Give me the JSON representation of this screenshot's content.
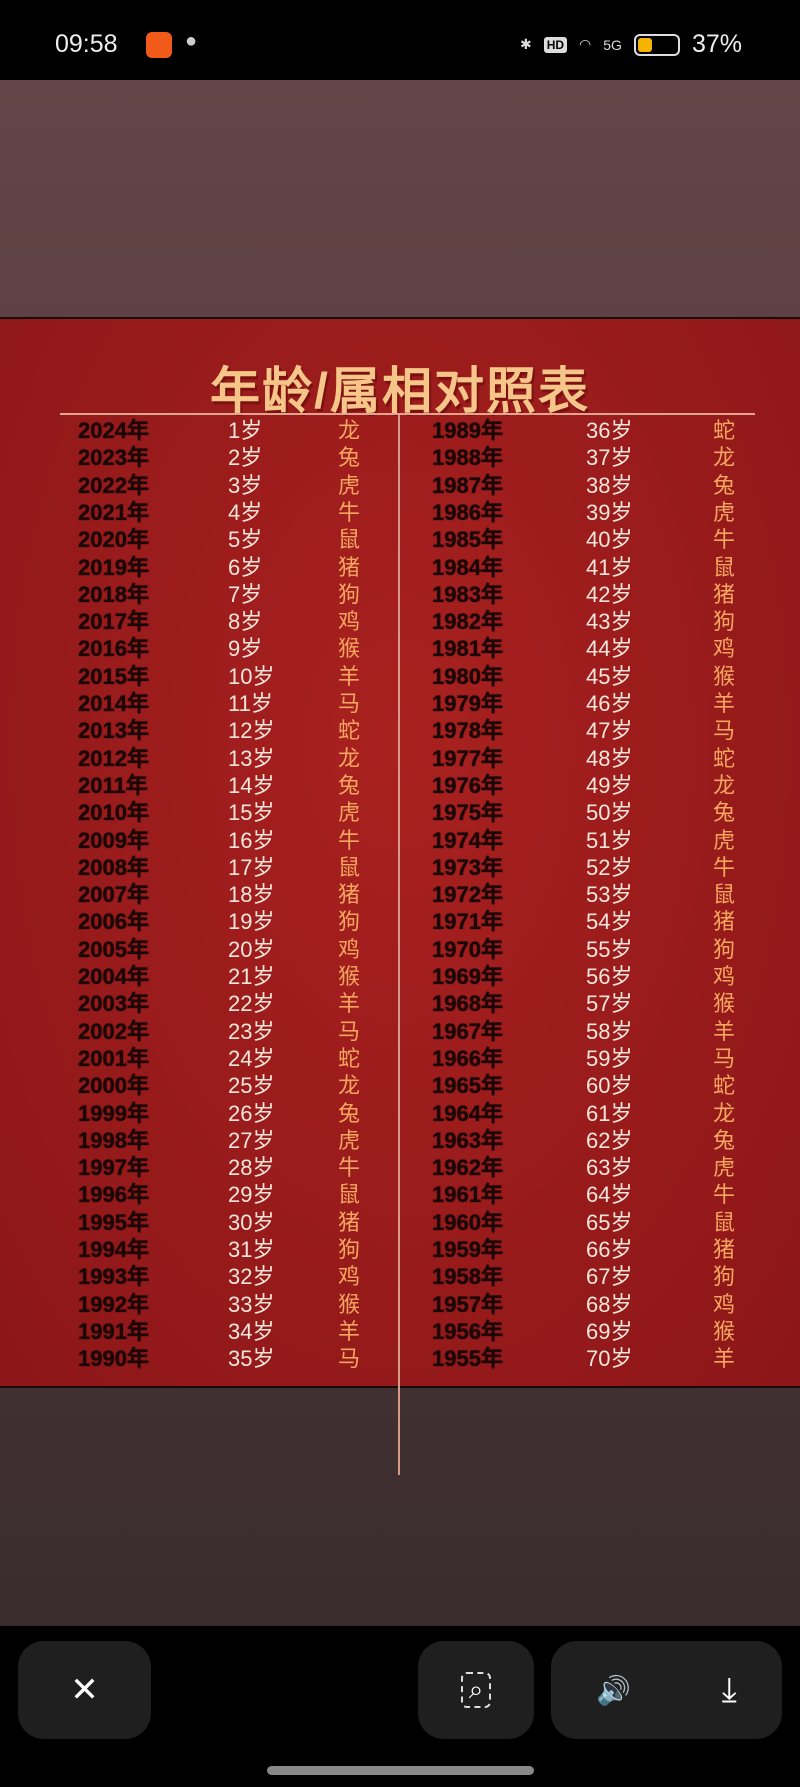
{
  "status_bar": {
    "time": "09:58",
    "icons": [
      "app-notification-icon",
      "wechat-icon",
      "bluetooth-icon",
      "hd-icon",
      "wifi-icon",
      "5g-signal-icon",
      "battery-icon"
    ],
    "hd": "HD",
    "net": "5G",
    "battery_level": 37,
    "battery_text": "37%",
    "battery_color": "#f4b400"
  },
  "poster": {
    "title": "年龄/属相对照表",
    "left": [
      [
        "2024年",
        "1岁",
        "龙"
      ],
      [
        "2023年",
        "2岁",
        "兔"
      ],
      [
        "2022年",
        "3岁",
        "虎"
      ],
      [
        "2021年",
        "4岁",
        "牛"
      ],
      [
        "2020年",
        "5岁",
        "鼠"
      ],
      [
        "2019年",
        "6岁",
        "猪"
      ],
      [
        "2018年",
        "7岁",
        "狗"
      ],
      [
        "2017年",
        "8岁",
        "鸡"
      ],
      [
        "2016年",
        "9岁",
        "猴"
      ],
      [
        "2015年",
        "10岁",
        "羊"
      ],
      [
        "2014年",
        "11岁",
        "马"
      ],
      [
        "2013年",
        "12岁",
        "蛇"
      ],
      [
        "2012年",
        "13岁",
        "龙"
      ],
      [
        "2011年",
        "14岁",
        "兔"
      ],
      [
        "2010年",
        "15岁",
        "虎"
      ],
      [
        "2009年",
        "16岁",
        "牛"
      ],
      [
        "2008年",
        "17岁",
        "鼠"
      ],
      [
        "2007年",
        "18岁",
        "猪"
      ],
      [
        "2006年",
        "19岁",
        "狗"
      ],
      [
        "2005年",
        "20岁",
        "鸡"
      ],
      [
        "2004年",
        "21岁",
        "猴"
      ],
      [
        "2003年",
        "22岁",
        "羊"
      ],
      [
        "2002年",
        "23岁",
        "马"
      ],
      [
        "2001年",
        "24岁",
        "蛇"
      ],
      [
        "2000年",
        "25岁",
        "龙"
      ],
      [
        "1999年",
        "26岁",
        "兔"
      ],
      [
        "1998年",
        "27岁",
        "虎"
      ],
      [
        "1997年",
        "28岁",
        "牛"
      ],
      [
        "1996年",
        "29岁",
        "鼠"
      ],
      [
        "1995年",
        "30岁",
        "猪"
      ],
      [
        "1994年",
        "31岁",
        "狗"
      ],
      [
        "1993年",
        "32岁",
        "鸡"
      ],
      [
        "1992年",
        "33岁",
        "猴"
      ],
      [
        "1991年",
        "34岁",
        "羊"
      ],
      [
        "1990年",
        "35岁",
        "马"
      ]
    ],
    "right": [
      [
        "1989年",
        "36岁",
        "蛇"
      ],
      [
        "1988年",
        "37岁",
        "龙"
      ],
      [
        "1987年",
        "38岁",
        "兔"
      ],
      [
        "1986年",
        "39岁",
        "虎"
      ],
      [
        "1985年",
        "40岁",
        "牛"
      ],
      [
        "1984年",
        "41岁",
        "鼠"
      ],
      [
        "1983年",
        "42岁",
        "猪"
      ],
      [
        "1982年",
        "43岁",
        "狗"
      ],
      [
        "1981年",
        "44岁",
        "鸡"
      ],
      [
        "1980年",
        "45岁",
        "猴"
      ],
      [
        "1979年",
        "46岁",
        "羊"
      ],
      [
        "1978年",
        "47岁",
        "马"
      ],
      [
        "1977年",
        "48岁",
        "蛇"
      ],
      [
        "1976年",
        "49岁",
        "龙"
      ],
      [
        "1975年",
        "50岁",
        "兔"
      ],
      [
        "1974年",
        "51岁",
        "虎"
      ],
      [
        "1973年",
        "52岁",
        "牛"
      ],
      [
        "1972年",
        "53岁",
        "鼠"
      ],
      [
        "1971年",
        "54岁",
        "猪"
      ],
      [
        "1970年",
        "55岁",
        "狗"
      ],
      [
        "1969年",
        "56岁",
        "鸡"
      ],
      [
        "1968年",
        "57岁",
        "猴"
      ],
      [
        "1967年",
        "58岁",
        "羊"
      ],
      [
        "1966年",
        "59岁",
        "马"
      ],
      [
        "1965年",
        "60岁",
        "蛇"
      ],
      [
        "1964年",
        "61岁",
        "龙"
      ],
      [
        "1963年",
        "62岁",
        "兔"
      ],
      [
        "1962年",
        "63岁",
        "虎"
      ],
      [
        "1961年",
        "64岁",
        "牛"
      ],
      [
        "1960年",
        "65岁",
        "鼠"
      ],
      [
        "1959年",
        "66岁",
        "猪"
      ],
      [
        "1958年",
        "67岁",
        "狗"
      ],
      [
        "1957年",
        "68岁",
        "鸡"
      ],
      [
        "1956年",
        "69岁",
        "猴"
      ],
      [
        "1955年",
        "70岁",
        "羊"
      ]
    ]
  },
  "toolbar": {
    "close_icon": "✕",
    "lens_icon": "⌕",
    "speaker_icon": "🔊",
    "download_icon": "⤓"
  }
}
